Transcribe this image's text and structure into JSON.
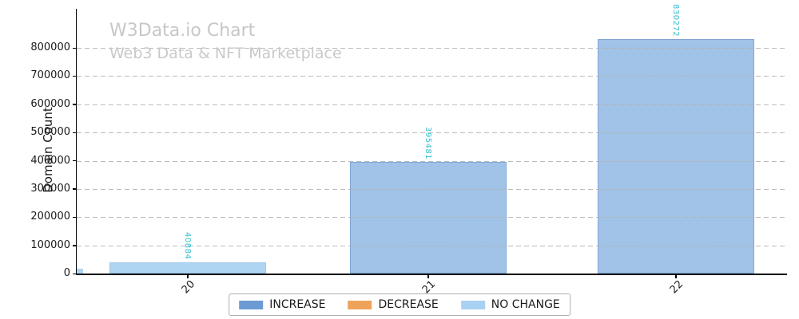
{
  "chart_data": {
    "type": "bar",
    "title": "W3Data.io Chart",
    "subtitle": "Web3 Data & NFT Marketplace",
    "ylabel": "Domain Count",
    "xlabel": "",
    "categories": [
      "20",
      "21",
      "22"
    ],
    "bars": [
      {
        "category": "20",
        "value": 40884,
        "value_label": "40884",
        "type": "NO CHANGE"
      },
      {
        "category": "21",
        "value": 395481,
        "value_label": "395481",
        "type": "INCREASE"
      },
      {
        "category": "22",
        "value": 830272,
        "value_label": "830272",
        "type": "INCREASE"
      }
    ],
    "edge_artifact_bar": {
      "approx_value": 17000,
      "type": "NO CHANGE"
    },
    "yticks": [
      0,
      100000,
      200000,
      300000,
      400000,
      500000,
      600000,
      700000,
      800000
    ],
    "ylim": [
      0,
      938000
    ],
    "grid": {
      "axis": "y",
      "style": "dashed",
      "color": "#b3b3b3",
      "drawn_over_bars": true
    },
    "legend": [
      {
        "label": "INCREASE",
        "color": "#6b9bd2"
      },
      {
        "label": "DECREASE",
        "color": "#efa35a"
      },
      {
        "label": "NO CHANGE",
        "color": "#a9d1f2"
      }
    ],
    "legend_position": "bottom-center",
    "colors": {
      "bar_fill_increase": "#a1c3e7",
      "bar_fill_decrease": "#f6c79c",
      "bar_fill_no_change": "#aed5f2",
      "bar_edge_increase": "rgba(90,130,190,0.45)",
      "bar_edge_no_change": "rgba(140,180,220,0.45)",
      "value_label": "#34c0cd",
      "title": "#c7c7c7",
      "axis_text": "#1a1a1a"
    }
  }
}
